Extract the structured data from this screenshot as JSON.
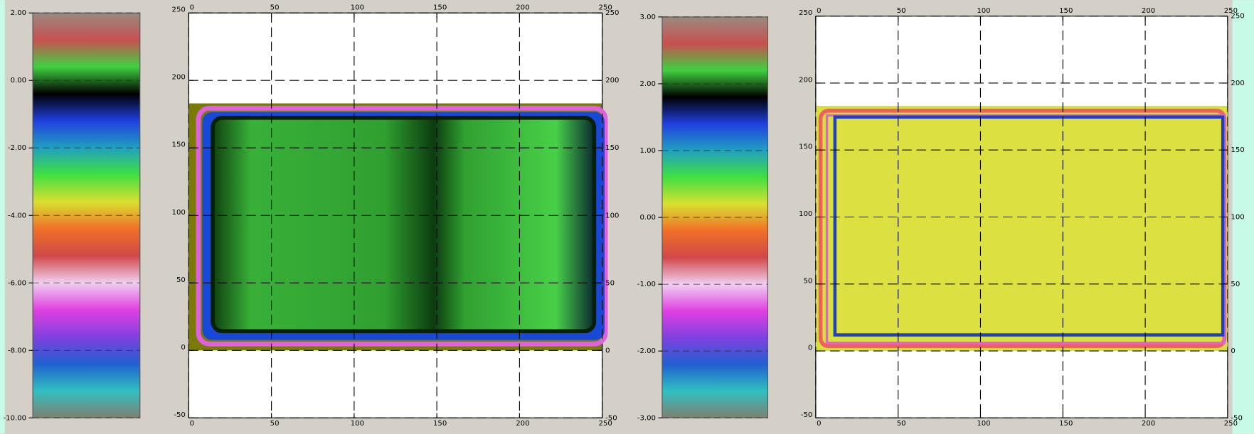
{
  "chart_data": [
    {
      "type": "colorbar",
      "colors": [
        "#9a8a80",
        "#c85050",
        "#40d040",
        "#000000",
        "#2040e0",
        "#20a0c0",
        "#40e040",
        "#d8e030",
        "#f07028",
        "#d04848",
        "#f0d0f0",
        "#e040e0",
        "#8040e0",
        "#2060d0",
        "#30c0c0",
        "#808070"
      ],
      "ylim": [
        -10,
        2
      ],
      "yticks": [
        {
          "value": -10,
          "label": "-10.00"
        },
        {
          "value": -8,
          "label": "-8.00"
        },
        {
          "value": -6,
          "label": "-6.00"
        },
        {
          "value": -4,
          "label": "-4.00"
        },
        {
          "value": -2,
          "label": "-2.00"
        },
        {
          "value": 0,
          "label": "0.00"
        },
        {
          "value": 2,
          "label": "2.00"
        }
      ],
      "grid": true
    },
    {
      "type": "heatmap",
      "style": "green",
      "xlim": [
        0,
        250
      ],
      "ylim": [
        -50,
        250
      ],
      "xticks": [
        0,
        50,
        100,
        150,
        200,
        250
      ],
      "yticks": [
        -50,
        0,
        50,
        100,
        150,
        200,
        250
      ],
      "grid": true
    },
    {
      "type": "colorbar",
      "colors": [
        "#9a8a80",
        "#c85050",
        "#40d040",
        "#000000",
        "#2040e0",
        "#20a0c0",
        "#40e040",
        "#d8e030",
        "#f07028",
        "#d04848",
        "#f0d0f0",
        "#e040e0",
        "#8040e0",
        "#2060d0",
        "#30c0c0",
        "#808070"
      ],
      "ylim": [
        -3,
        3
      ],
      "yticks": [
        {
          "value": -3,
          "label": "-3.00"
        },
        {
          "value": -2,
          "label": "-2.00"
        },
        {
          "value": -1,
          "label": "-1.00"
        },
        {
          "value": 0,
          "label": "0.00"
        },
        {
          "value": 1,
          "label": "1.00"
        },
        {
          "value": 2,
          "label": "2.00"
        },
        {
          "value": 3,
          "label": "3.00"
        }
      ],
      "grid": true
    },
    {
      "type": "heatmap",
      "style": "yellow",
      "xlim": [
        0,
        250
      ],
      "ylim": [
        -50,
        250
      ],
      "xticks": [
        0,
        50,
        100,
        150,
        200,
        250
      ],
      "yticks": [
        -50,
        0,
        50,
        100,
        150,
        200,
        250
      ],
      "grid": true
    }
  ]
}
